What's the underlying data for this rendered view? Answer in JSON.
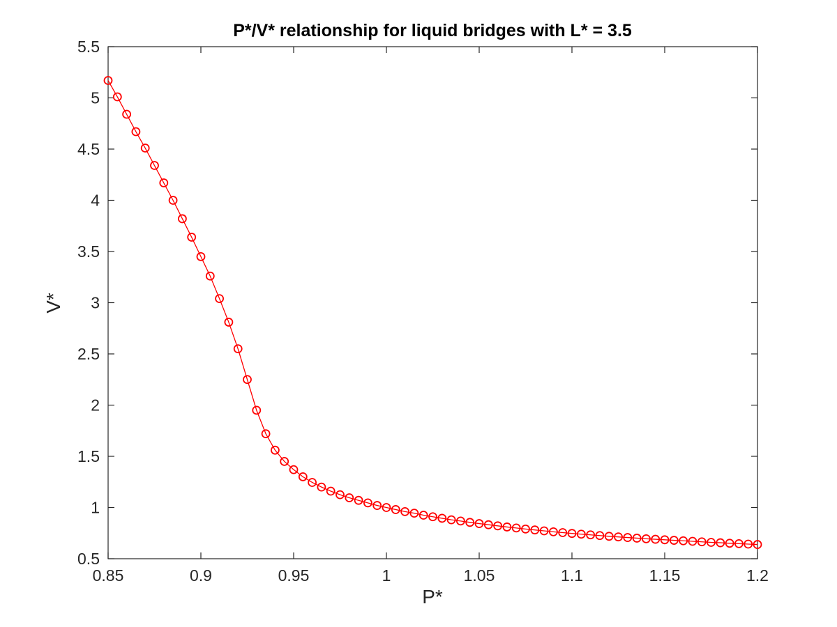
{
  "chart_data": {
    "type": "line",
    "title": "P*/V* relationship for liquid bridges with L* = 3.5",
    "xlabel": "P*",
    "ylabel": "V*",
    "xlim": [
      0.85,
      1.2
    ],
    "ylim": [
      0.5,
      5.5
    ],
    "xticks": [
      "0.85",
      "0.9",
      "0.95",
      "1",
      "1.05",
      "1.1",
      "1.15",
      "1.2"
    ],
    "yticks": [
      "0.5",
      "1",
      "1.5",
      "2",
      "2.5",
      "3",
      "3.5",
      "4",
      "4.5",
      "5",
      "5.5"
    ],
    "grid": false,
    "marker": "circle",
    "series_color": "#ff0000",
    "series": [
      {
        "x": [
          0.85,
          0.855,
          0.86,
          0.865,
          0.87,
          0.875,
          0.88,
          0.885,
          0.89,
          0.895,
          0.9,
          0.905,
          0.91,
          0.915,
          0.92,
          0.925,
          0.93,
          0.935,
          0.94,
          0.945,
          0.95,
          0.955,
          0.96,
          0.965,
          0.97,
          0.975,
          0.98,
          0.985,
          0.99,
          0.995,
          1.0,
          1.005,
          1.01,
          1.015,
          1.02,
          1.025,
          1.03,
          1.035,
          1.04,
          1.045,
          1.05,
          1.055,
          1.06,
          1.065,
          1.07,
          1.075,
          1.08,
          1.085,
          1.09,
          1.095,
          1.1,
          1.105,
          1.11,
          1.115,
          1.12,
          1.125,
          1.13,
          1.135,
          1.14,
          1.145,
          1.15,
          1.155,
          1.16,
          1.165,
          1.17,
          1.175,
          1.18,
          1.185,
          1.19,
          1.195,
          1.2
        ],
        "y": [
          5.17,
          5.01,
          4.84,
          4.67,
          4.51,
          4.34,
          4.17,
          4.0,
          3.82,
          3.64,
          3.45,
          3.26,
          3.04,
          2.81,
          2.55,
          2.25,
          1.95,
          1.72,
          1.56,
          1.45,
          1.37,
          1.3,
          1.245,
          1.2,
          1.16,
          1.125,
          1.095,
          1.07,
          1.045,
          1.02,
          1.0,
          0.98,
          0.96,
          0.945,
          0.925,
          0.91,
          0.895,
          0.88,
          0.868,
          0.855,
          0.843,
          0.832,
          0.821,
          0.81,
          0.8,
          0.79,
          0.781,
          0.772,
          0.763,
          0.755,
          0.747,
          0.74,
          0.733,
          0.726,
          0.719,
          0.713,
          0.707,
          0.701,
          0.695,
          0.69,
          0.685,
          0.68,
          0.675,
          0.67,
          0.665,
          0.66,
          0.656,
          0.651,
          0.647,
          0.643,
          0.639
        ]
      }
    ]
  }
}
